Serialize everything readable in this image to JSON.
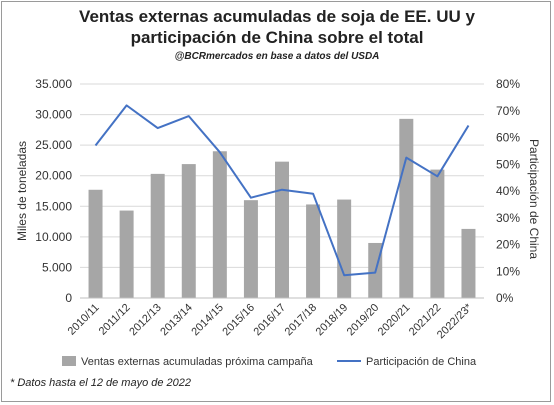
{
  "chart_data": {
    "type": "bar",
    "title_line1": "Ventas externas acumuladas de soja de EE. UU y",
    "title_line2": "participación de China sobre el total",
    "subtitle": "@BCRmercados en base a datos del USDA",
    "ylabel": "Miles de toneladas",
    "y2label": "Participación de China",
    "ylim": [
      0,
      35000
    ],
    "y2lim": [
      0,
      0.8
    ],
    "yticks": [
      "0",
      "5.000",
      "10.000",
      "15.000",
      "20.000",
      "25.000",
      "30.000",
      "35.000"
    ],
    "y2ticks": [
      "0%",
      "10%",
      "20%",
      "30%",
      "40%",
      "50%",
      "60%",
      "70%",
      "80%"
    ],
    "categories": [
      "2010/11",
      "2011/12",
      "2012/13",
      "2013/14",
      "2014/15",
      "2015/16",
      "2016/17",
      "2017/18",
      "2018/19",
      "2019/20",
      "2020/21",
      "2021/22",
      "2022/23*"
    ],
    "series": [
      {
        "name": "Ventas externas acumuladas próxima campaña",
        "type": "bar",
        "axis": "left",
        "color": "#a6a6a6",
        "values": [
          17700,
          14300,
          20300,
          21900,
          24000,
          16000,
          22300,
          15300,
          16100,
          9000,
          29300,
          21000,
          11300
        ]
      },
      {
        "name": "Participación de China",
        "type": "line",
        "axis": "right",
        "color": "#4472c4",
        "values": [
          0.57,
          0.72,
          0.635,
          0.68,
          0.545,
          0.375,
          0.405,
          0.39,
          0.085,
          0.095,
          0.525,
          0.455,
          0.645
        ]
      }
    ],
    "grid": true,
    "legend": "bottom",
    "footnote": "* Datos hasta el 12 de mayo de 2022"
  }
}
